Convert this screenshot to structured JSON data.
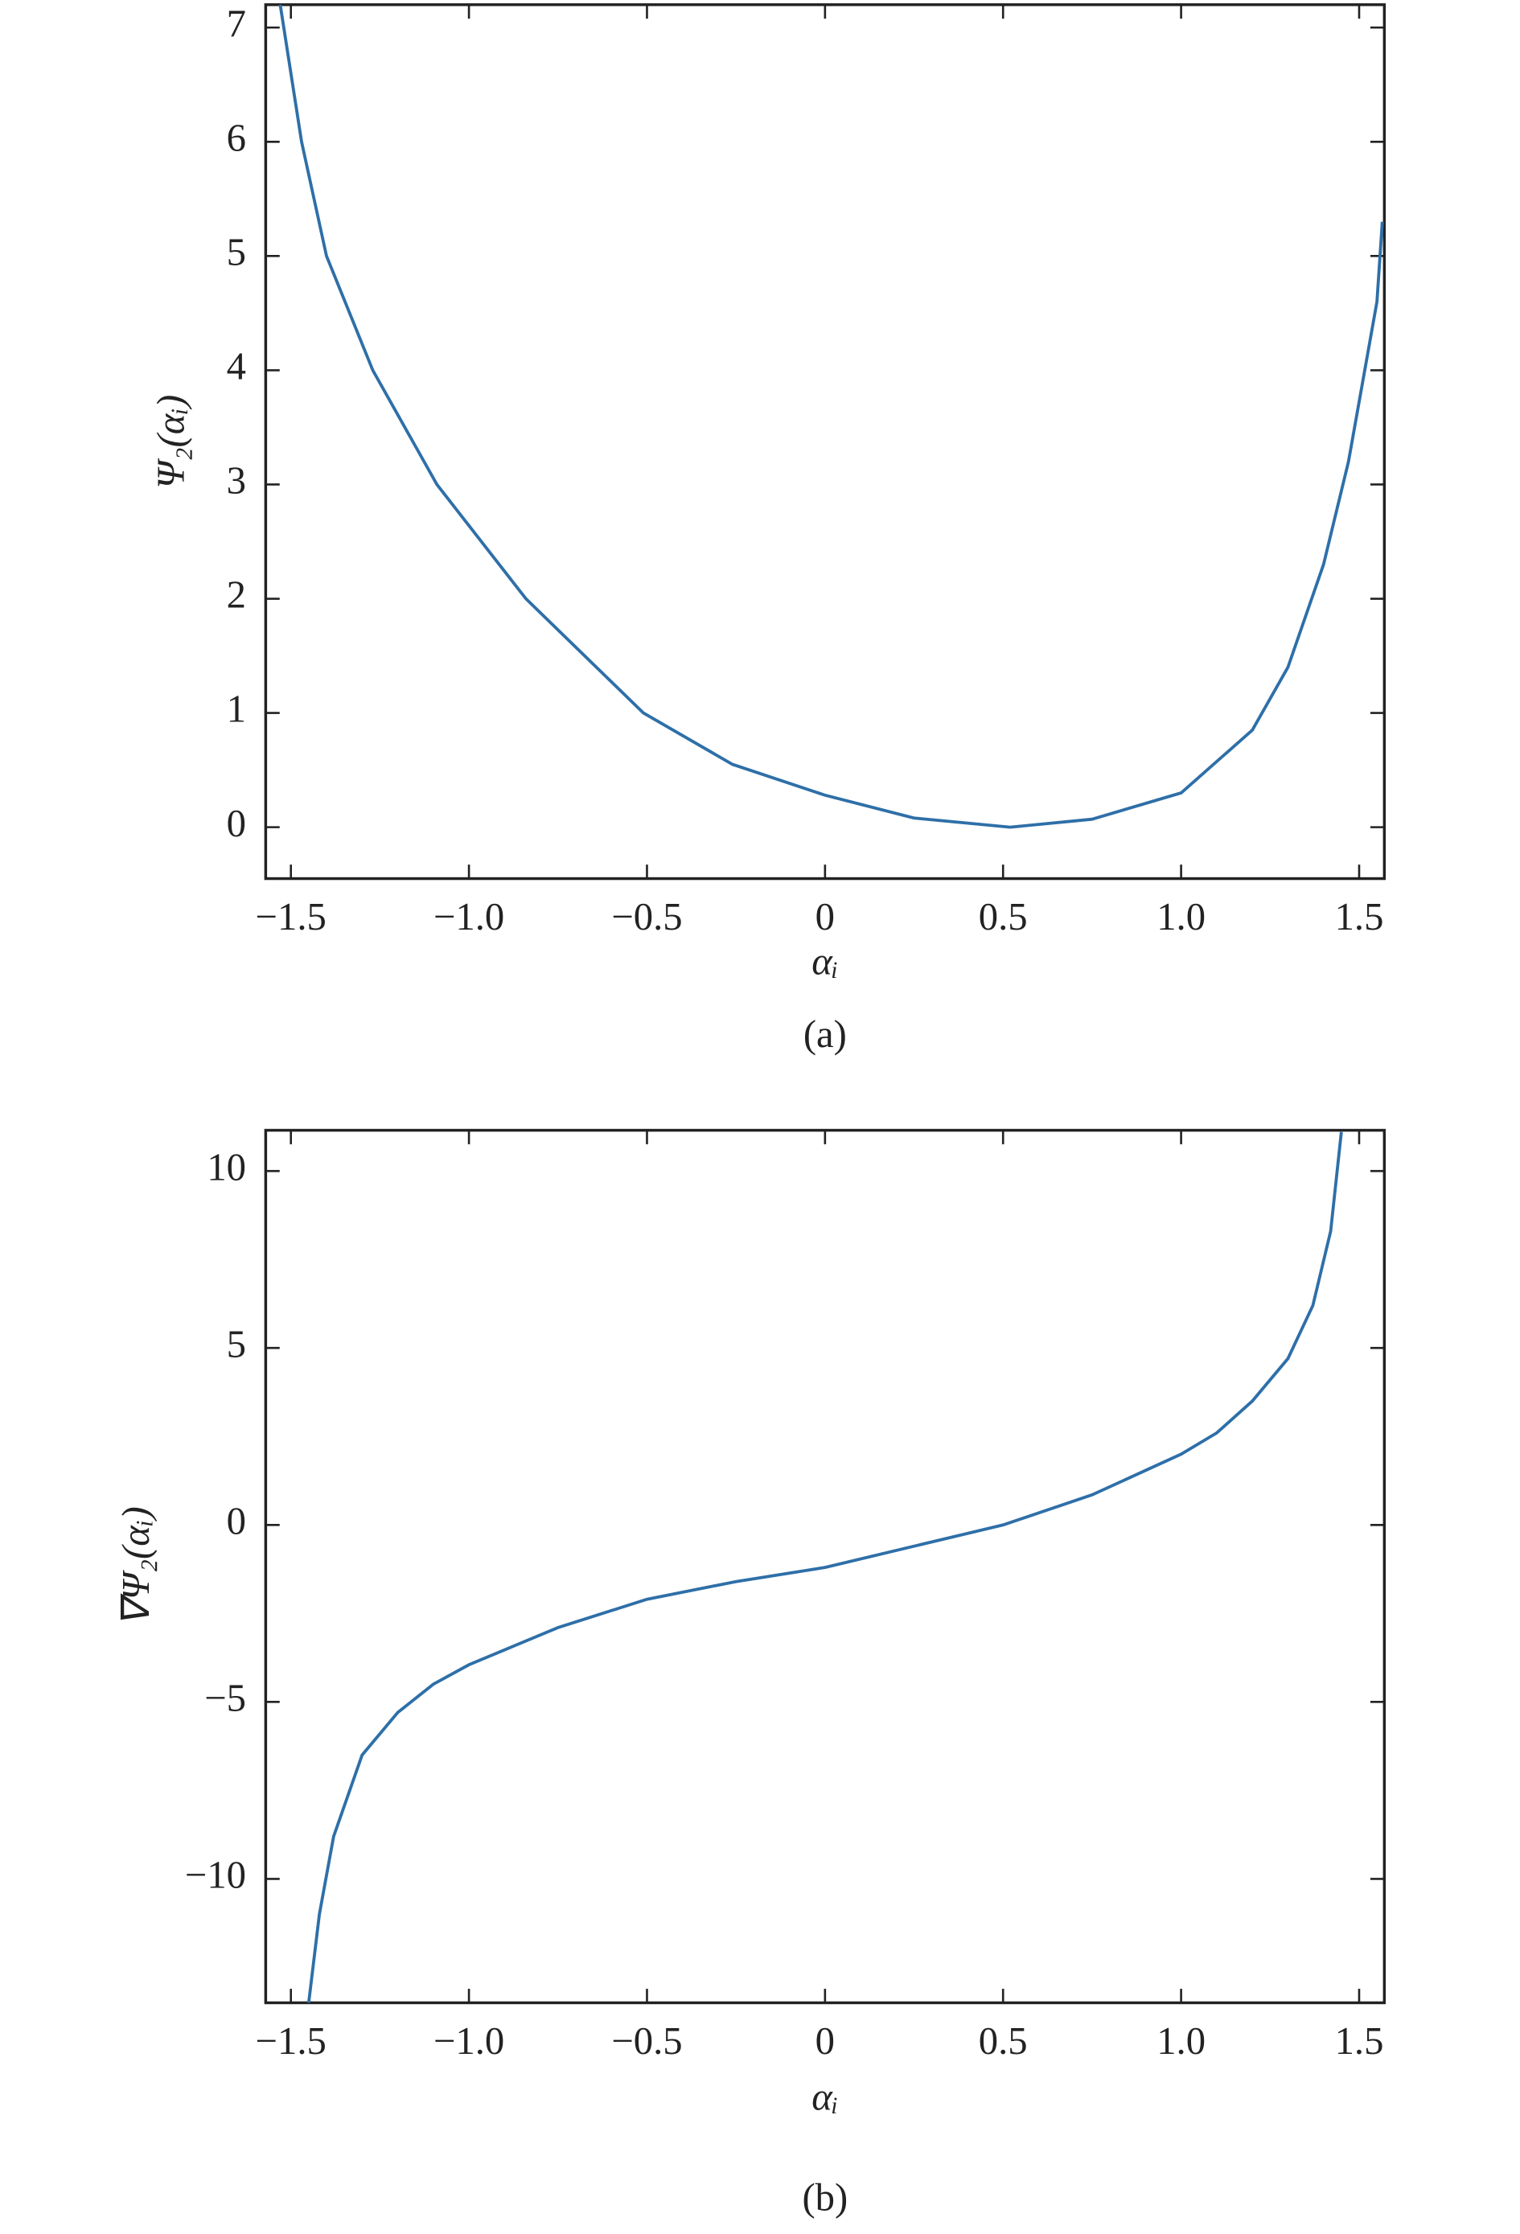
{
  "chart_data": [
    {
      "type": "line",
      "caption": "(a)",
      "xlabel": "αᵢ",
      "ylabel": "Ψ₂(αᵢ)",
      "xlim": [
        -1.5708,
        1.5708
      ],
      "ylim": [
        -0.45,
        7.2
      ],
      "xticks": [
        {
          "value": -1.5,
          "label": "−1.5"
        },
        {
          "value": -1.0,
          "label": "−1.0"
        },
        {
          "value": -0.5,
          "label": "−0.5"
        },
        0,
        0.5,
        {
          "value": 1.0,
          "label": "1.0"
        },
        1.5
      ],
      "yticks": [
        0,
        1,
        2,
        3,
        4,
        5,
        6,
        7
      ],
      "color": "#2e6fa8",
      "x": [
        -1.53,
        -1.47,
        -1.4,
        -1.27,
        -1.09,
        -0.84,
        -0.51,
        -0.26,
        0,
        0.25,
        0.52,
        0.75,
        1.0,
        1.2,
        1.3,
        1.4,
        1.47,
        1.51,
        1.55,
        1.565
      ],
      "values": [
        7.2,
        6.0,
        5.0,
        4.0,
        3.0,
        2.0,
        1.0,
        0.55,
        0.28,
        0.08,
        0,
        0.07,
        0.3,
        0.85,
        1.4,
        2.3,
        3.2,
        3.9,
        4.6,
        5.3
      ]
    },
    {
      "type": "line",
      "caption": "(b)",
      "xlabel": "αᵢ",
      "ylabel": "∇Ψ₂(αᵢ)",
      "xlim": [
        -1.5708,
        1.5708
      ],
      "ylim": [
        -13.5,
        11.15
      ],
      "xticks": [
        {
          "value": -1.5,
          "label": "−1.5"
        },
        {
          "value": -1.0,
          "label": "−1.0"
        },
        {
          "value": -0.5,
          "label": "−0.5"
        },
        0,
        0.5,
        {
          "value": 1.0,
          "label": "1.0"
        },
        1.5
      ],
      "yticks": [
        {
          "value": -10,
          "label": "−10"
        },
        {
          "value": -5,
          "label": "−5"
        },
        0,
        5,
        10
      ],
      "color": "#2e6fa8",
      "x": [
        -1.45,
        -1.42,
        -1.38,
        -1.3,
        -1.2,
        -1.1,
        -1.0,
        -0.75,
        -0.5,
        -0.25,
        0,
        0.25,
        0.5,
        0.75,
        1.0,
        1.1,
        1.2,
        1.3,
        1.37,
        1.42,
        1.45
      ],
      "values": [
        -13.5,
        -11,
        -8.8,
        -6.5,
        -5.3,
        -4.5,
        -3.95,
        -2.9,
        -2.1,
        -1.6,
        -1.2,
        -0.6,
        0,
        0.85,
        2.0,
        2.6,
        3.5,
        4.7,
        6.2,
        8.3,
        11.1
      ]
    }
  ]
}
